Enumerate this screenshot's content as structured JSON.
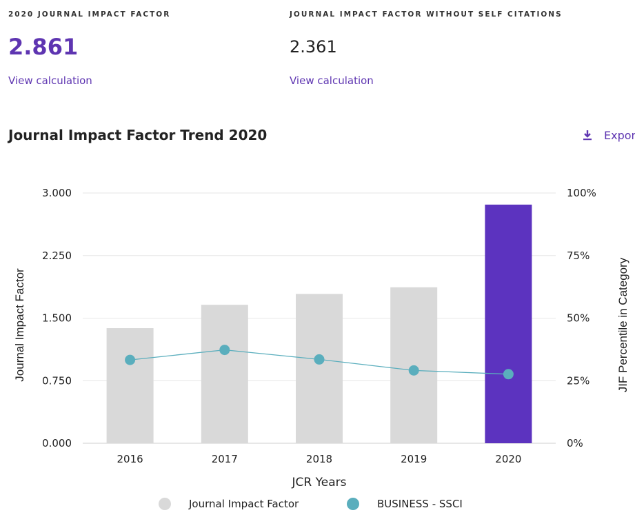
{
  "metrics": {
    "jif": {
      "label": "2020 JOURNAL IMPACT FACTOR",
      "value": "2.861",
      "link": "View calculation"
    },
    "jif_no_self": {
      "label": "JOURNAL IMPACT FACTOR WITHOUT SELF CITATIONS",
      "value": "2.361",
      "link": "View calculation"
    }
  },
  "trend": {
    "title": "Journal Impact Factor Trend 2020",
    "export_label": "Export",
    "export_icon": "download-icon"
  },
  "colors": {
    "accent": "#5e35b1",
    "bar_default": "#d9d9d9",
    "bar_highlight": "#5c33bf",
    "line": "#5aaebd",
    "grid": "#e6e6e6"
  },
  "chart_data": {
    "type": "bar",
    "title": "Journal Impact Factor Trend 2020",
    "categories": [
      "2016",
      "2017",
      "2018",
      "2019",
      "2020"
    ],
    "series": [
      {
        "name": "Journal Impact Factor",
        "type": "bar",
        "axis": "left",
        "values": [
          1.38,
          1.66,
          1.79,
          1.87,
          2.861
        ]
      },
      {
        "name": "BUSINESS - SSCI",
        "type": "line",
        "axis": "right",
        "values": [
          33.3,
          37.3,
          33.5,
          29.1,
          27.6
        ]
      }
    ],
    "highlight_category": "2020",
    "xlabel": "JCR Years",
    "ylabel": "Journal Impact Factor",
    "y2label": "JIF Percentile in Category",
    "ylim": [
      0,
      3
    ],
    "y2lim": [
      0,
      100
    ],
    "yticks": [
      "0.000",
      "0.750",
      "1.500",
      "2.250",
      "3.000"
    ],
    "y2ticks": [
      "0%",
      "25%",
      "50%",
      "75%",
      "100%"
    ],
    "grid": true,
    "legend": [
      "Journal Impact Factor",
      "BUSINESS - SSCI"
    ],
    "legend_position": "bottom"
  }
}
